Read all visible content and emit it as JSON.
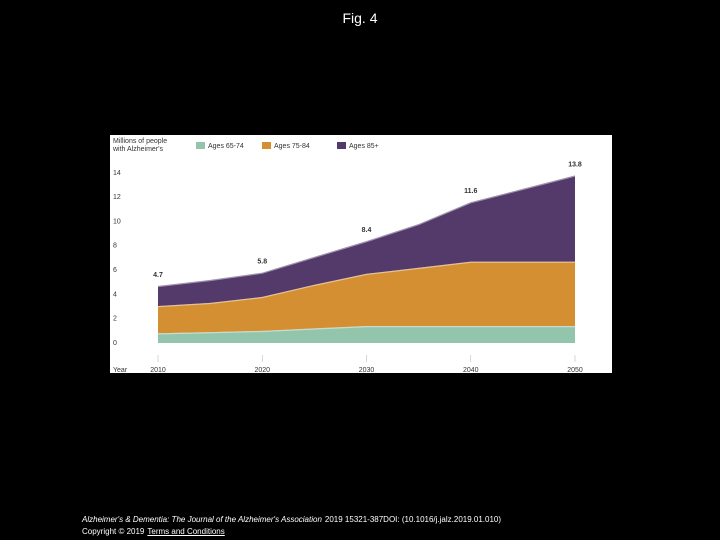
{
  "title": "Fig. 4",
  "chart_data": {
    "type": "stacked-area",
    "y_label": "Millions of people with Alzheimer's",
    "x_label": "Year",
    "x": [
      2010,
      2015,
      2020,
      2025,
      2030,
      2035,
      2040,
      2045,
      2050
    ],
    "series": [
      {
        "name": "Ages 65-74",
        "color": "#93c4ac",
        "values": [
          0.8,
          0.9,
          1.0,
          1.2,
          1.4,
          1.4,
          1.4,
          1.4,
          1.4
        ]
      },
      {
        "name": "Ages 75-84",
        "color": "#d48f32",
        "values": [
          2.25,
          2.4,
          2.8,
          3.6,
          4.3,
          4.8,
          5.3,
          5.3,
          5.3
        ]
      },
      {
        "name": "Ages 85+",
        "color": "#533a6b",
        "values": [
          1.65,
          1.9,
          2.0,
          2.3,
          2.7,
          3.6,
          4.9,
          6.0,
          7.1
        ]
      }
    ],
    "annotations": [
      {
        "x": 2010,
        "y": 4.7
      },
      {
        "x": 2020,
        "y": 5.8
      },
      {
        "x": 2030,
        "y": 8.4
      },
      {
        "x": 2040,
        "y": 11.6
      },
      {
        "x": 2050,
        "y": 13.8
      }
    ],
    "xlim": [
      2010,
      2050
    ],
    "xticks": [
      2010,
      2020,
      2030,
      2040,
      2050
    ],
    "ylim": [
      0,
      14
    ],
    "yticks": [
      0,
      2,
      4,
      6,
      8,
      10,
      12,
      14
    ],
    "grid": false
  },
  "footer": {
    "journal": "Alzheimer's & Dementia: The Journal of the Alzheimer's Association",
    "citation": "2019 15321-387DOI: (10.1016/j.jalz.2019.01.010)",
    "copyright": "Copyright © 2019",
    "link": "Terms and Conditions"
  }
}
